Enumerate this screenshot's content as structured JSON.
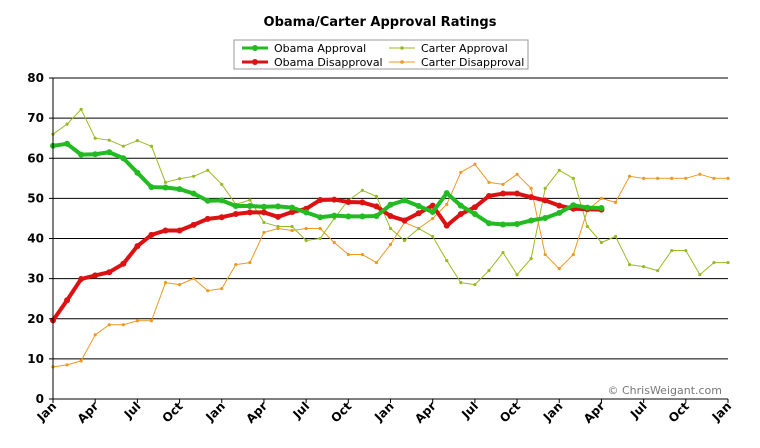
{
  "chart_data": {
    "type": "line",
    "title": "Obama/Carter Approval Ratings",
    "watermark": "© ChrisWeigant.com",
    "ylim": [
      0,
      80
    ],
    "yticks": [
      0,
      10,
      20,
      30,
      40,
      50,
      60,
      70,
      80
    ],
    "x_tick_labels": [
      "Jan",
      "Apr",
      "Jul",
      "Oct",
      "Jan",
      "Apr",
      "Jul",
      "Oct",
      "Jan",
      "Apr",
      "Jul",
      "Oct",
      "Jan",
      "Apr",
      "Jul",
      "Oct",
      "Jan"
    ],
    "legend": {
      "placement": "top-center",
      "columns": 2
    },
    "series": [
      {
        "name": "Obama Approval",
        "color": "#22bb22",
        "style": "thick",
        "values": [
          63.1,
          63.6,
          60.9,
          61.0,
          61.5,
          60.0,
          56.4,
          52.8,
          52.7,
          52.3,
          51.2,
          49.4,
          49.5,
          48.1,
          48.1,
          47.9,
          48.0,
          47.7,
          46.5,
          45.3,
          45.7,
          45.5,
          45.5,
          45.6,
          48.4,
          49.5,
          48.1,
          46.6,
          51.3,
          48.2,
          46.1,
          43.8,
          43.5,
          43.6,
          44.5,
          45.1,
          46.4,
          48.3,
          47.7,
          47.6
        ]
      },
      {
        "name": "Obama Disapproval",
        "color": "#dd1111",
        "style": "thick",
        "values": [
          19.6,
          24.6,
          29.9,
          30.8,
          31.6,
          33.7,
          38.1,
          40.9,
          42.0,
          42.0,
          43.4,
          44.9,
          45.3,
          46.1,
          46.5,
          46.5,
          45.4,
          46.6,
          47.4,
          49.6,
          49.7,
          49.1,
          49.0,
          48.0,
          45.6,
          44.5,
          46.3,
          48.2,
          43.2,
          46.1,
          47.8,
          50.6,
          51.2,
          51.2,
          50.3,
          49.5,
          48.2,
          47.4,
          47.3,
          47.2
        ]
      },
      {
        "name": "Carter Approval",
        "color": "#99bb22",
        "style": "thin",
        "values": [
          66.0,
          68.5,
          72.2,
          65.0,
          64.5,
          63.0,
          64.4,
          63.0,
          54.0,
          54.9,
          55.5,
          57.0,
          53.5,
          48.5,
          49.6,
          44.0,
          43.0,
          43.0,
          39.5,
          40.0,
          45.0,
          49.5,
          52.0,
          50.5,
          42.5,
          39.5,
          42.5,
          40.5,
          34.5,
          29.0,
          28.5,
          32.0,
          36.5,
          31.0,
          35.0,
          52.5,
          57.0,
          55.0,
          43.0,
          39.0,
          40.5,
          33.5,
          33.0,
          32.0,
          37.0,
          37.0,
          31.0,
          34.0,
          34.0
        ]
      },
      {
        "name": "Carter Disapproval",
        "color": "#ee9922",
        "style": "thin",
        "values": [
          8.0,
          8.5,
          9.5,
          16.0,
          18.5,
          18.5,
          19.5,
          19.5,
          29.0,
          28.5,
          30.0,
          27.0,
          27.5,
          33.5,
          34.0,
          41.5,
          42.5,
          42.0,
          42.5,
          42.5,
          39.0,
          36.0,
          36.0,
          34.0,
          38.5,
          44.0,
          42.5,
          45.0,
          48.5,
          56.5,
          58.5,
          54.0,
          53.5,
          56.0,
          52.5,
          36.0,
          32.5,
          36.0,
          47.0,
          50.0,
          49.0,
          55.5,
          55.0,
          55.0,
          55.0,
          55.0,
          56.0,
          55.0,
          55.0
        ]
      }
    ]
  }
}
